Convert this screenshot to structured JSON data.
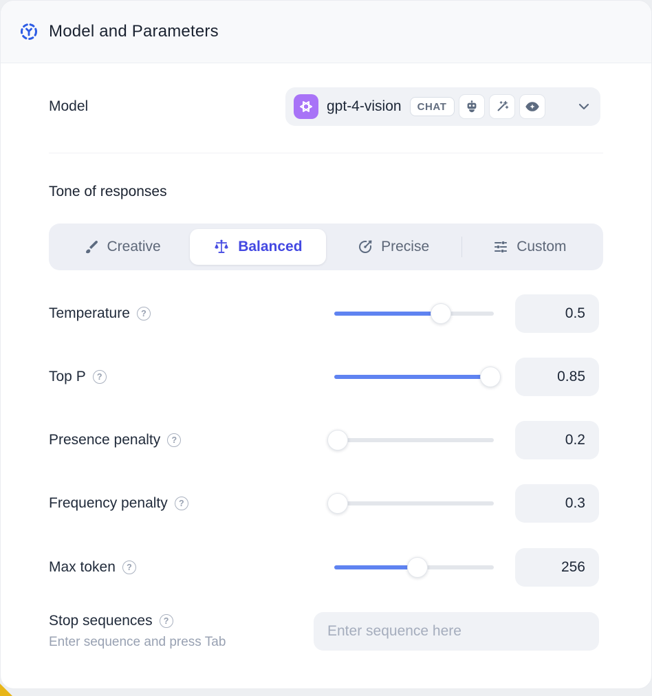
{
  "header": {
    "title": "Model and Parameters"
  },
  "model_row": {
    "label": "Model",
    "selected_model": {
      "name": "gpt-4-vision",
      "provider": "openai",
      "type_badge": "CHAT",
      "capability_icons": [
        "robot-icon",
        "magic-wand-icon",
        "vision-eye-icon"
      ]
    }
  },
  "tone": {
    "heading": "Tone of responses",
    "selected": "Balanced",
    "options": [
      {
        "label": "Creative",
        "icon": "paintbrush-icon"
      },
      {
        "label": "Balanced",
        "icon": "balance-scale-icon"
      },
      {
        "label": "Precise",
        "icon": "target-arrow-icon"
      },
      {
        "label": "Custom",
        "icon": "sliders-icon"
      }
    ]
  },
  "parameters": [
    {
      "label": "Temperature",
      "value": "0.5",
      "fill_percent": 67
    },
    {
      "label": "Top P",
      "value": "0.85",
      "fill_percent": 98
    },
    {
      "label": "Presence penalty",
      "value": "0.2",
      "fill_percent": 2
    },
    {
      "label": "Frequency penalty",
      "value": "0.3",
      "fill_percent": 2
    },
    {
      "label": "Max token",
      "value": "256",
      "fill_percent": 52
    }
  ],
  "stop_sequences": {
    "label": "Stop sequences",
    "hint": "Enter sequence and press Tab",
    "placeholder": "Enter sequence here"
  },
  "colors": {
    "accent_blue": "#5f83f1",
    "selected_indigo": "#4348e2",
    "header_icon_blue": "#2d5ce5",
    "provider_purple": "#a873f7"
  }
}
